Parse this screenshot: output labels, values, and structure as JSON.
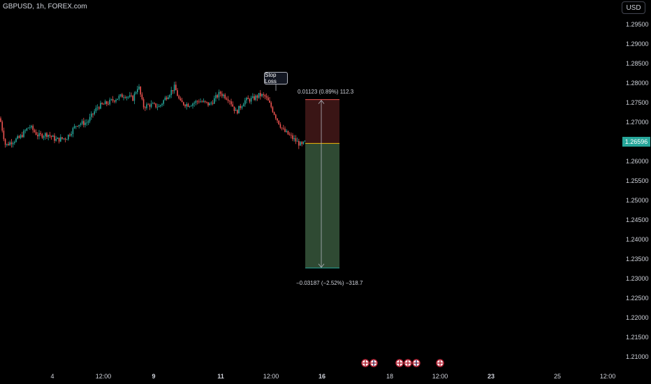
{
  "header": {
    "symbol": "GBPUSD, 1h, FOREX.com",
    "currency": "USD"
  },
  "position_tool": {
    "stop_label": "Stop Loss",
    "stop_stats": "0.01123 (0.89%) 112.3",
    "target_stats": "−0.03187 (−2.52%) −318.7",
    "entry": 1.2646,
    "stop": 1.2758,
    "target": 1.2327
  },
  "last_price": "1.26596",
  "colors": {
    "up": "#26a69a",
    "down": "#ef5350",
    "stop_zone": "#3a1515",
    "target_zone": "#2f4a33"
  },
  "chart_data": {
    "type": "candlestick",
    "y_axis": {
      "range": [
        1.2075,
        1.2995
      ],
      "ticks": [
        "1.29500",
        "1.29000",
        "1.28500",
        "1.28000",
        "1.27500",
        "1.27000",
        "1.26500",
        "1.26000",
        "1.25500",
        "1.25000",
        "1.24500",
        "1.24000",
        "1.23500",
        "1.23000",
        "1.22500",
        "1.22000",
        "1.21500",
        "1.21000"
      ]
    },
    "x_axis": {
      "ticks": [
        "4",
        "12:00",
        "9",
        "11",
        "12:00",
        "16",
        "18",
        "12:00",
        "23",
        "25",
        "12:00"
      ]
    },
    "path": [
      [
        0,
        1.271
      ],
      [
        8,
        1.264
      ],
      [
        16,
        1.265
      ],
      [
        28,
        1.266
      ],
      [
        42,
        1.269
      ],
      [
        55,
        1.2665
      ],
      [
        68,
        1.267
      ],
      [
        80,
        1.2655
      ],
      [
        95,
        1.266
      ],
      [
        110,
        1.2695
      ],
      [
        125,
        1.27
      ],
      [
        140,
        1.274
      ],
      [
        155,
        1.275
      ],
      [
        165,
        1.276
      ],
      [
        178,
        1.277
      ],
      [
        190,
        1.276
      ],
      [
        198,
        1.2795
      ],
      [
        205,
        1.274
      ],
      [
        215,
        1.2745
      ],
      [
        228,
        1.274
      ],
      [
        238,
        1.2765
      ],
      [
        250,
        1.279
      ],
      [
        258,
        1.275
      ],
      [
        270,
        1.2745
      ],
      [
        285,
        1.2755
      ],
      [
        300,
        1.2745
      ],
      [
        315,
        1.2775
      ],
      [
        328,
        1.276
      ],
      [
        338,
        1.2725
      ],
      [
        350,
        1.2755
      ],
      [
        362,
        1.276
      ],
      [
        372,
        1.277
      ],
      [
        380,
        1.2765
      ],
      [
        388,
        1.274
      ],
      [
        396,
        1.271
      ],
      [
        405,
        1.268
      ],
      [
        415,
        1.2665
      ],
      [
        425,
        1.265
      ],
      [
        432,
        1.264
      ],
      [
        440,
        1.2655
      ]
    ]
  }
}
